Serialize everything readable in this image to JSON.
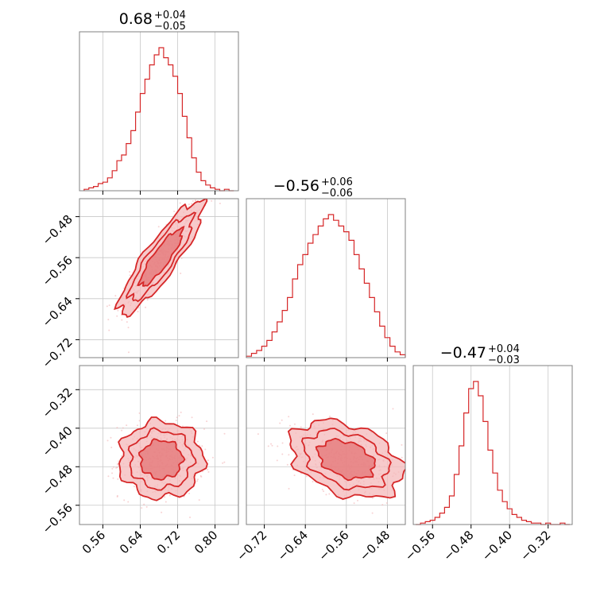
{
  "style": {
    "line_color": "#d62728",
    "fill_light": "#f4b8b9",
    "fill_dark": "#e5797b",
    "scatter_color": "#f2aeb0",
    "grid_color": "#c8c8c8",
    "frame_color": "#808080"
  },
  "chart_data": {
    "type": "corner",
    "grid": true,
    "parameters": [
      {
        "median": "0.68",
        "plus": "+0.04",
        "minus": "−0.05",
        "range": [
          0.51,
          0.85
        ]
      },
      {
        "median": "−0.56",
        "plus": "+0.06",
        "minus": "−0.06",
        "range": [
          -0.755,
          -0.445
        ]
      },
      {
        "median": "−0.47",
        "plus": "+0.04",
        "minus": "−0.03",
        "range": [
          -0.6,
          -0.27
        ]
      }
    ],
    "ticks": [
      {
        "values": [
          0.56,
          0.64,
          0.72,
          0.8
        ],
        "labels": [
          "0.56",
          "0.64",
          "0.72",
          "0.80"
        ]
      },
      {
        "values": [
          -0.72,
          -0.64,
          -0.56,
          -0.48
        ],
        "labels": [
          "−0.72",
          "−0.64",
          "−0.56",
          "−0.48"
        ]
      },
      {
        "values": [
          -0.56,
          -0.48,
          -0.4,
          -0.32
        ],
        "labels": [
          "−0.56",
          "−0.48",
          "−0.40",
          "−0.32"
        ]
      }
    ],
    "histograms": [
      {
        "param": 0,
        "x": [
          0.525,
          0.535,
          0.545,
          0.555,
          0.565,
          0.575,
          0.585,
          0.595,
          0.605,
          0.615,
          0.625,
          0.635,
          0.645,
          0.655,
          0.665,
          0.675,
          0.685,
          0.695,
          0.705,
          0.715,
          0.725,
          0.735,
          0.745,
          0.755,
          0.765,
          0.775,
          0.785,
          0.795,
          0.805,
          0.815,
          0.825,
          0.835
        ],
        "values": [
          0.01,
          0.02,
          0.03,
          0.05,
          0.06,
          0.09,
          0.14,
          0.21,
          0.25,
          0.33,
          0.42,
          0.55,
          0.68,
          0.78,
          0.88,
          0.95,
          1.0,
          0.93,
          0.88,
          0.8,
          0.68,
          0.52,
          0.37,
          0.23,
          0.13,
          0.07,
          0.04,
          0.02,
          0.01,
          0.0,
          0.01,
          0.0
        ]
      },
      {
        "param": 1,
        "x": [
          -0.75,
          -0.74,
          -0.73,
          -0.72,
          -0.71,
          -0.7,
          -0.69,
          -0.68,
          -0.67,
          -0.66,
          -0.65,
          -0.64,
          -0.63,
          -0.62,
          -0.61,
          -0.6,
          -0.59,
          -0.58,
          -0.57,
          -0.56,
          -0.55,
          -0.54,
          -0.53,
          -0.52,
          -0.51,
          -0.5,
          -0.49,
          -0.48,
          -0.47,
          -0.46,
          -0.45
        ],
        "values": [
          0.01,
          0.03,
          0.05,
          0.08,
          0.12,
          0.18,
          0.25,
          0.33,
          0.42,
          0.55,
          0.65,
          0.72,
          0.8,
          0.86,
          0.92,
          0.97,
          1.0,
          0.96,
          0.92,
          0.88,
          0.82,
          0.72,
          0.62,
          0.52,
          0.42,
          0.32,
          0.22,
          0.14,
          0.08,
          0.04,
          0.02
        ]
      },
      {
        "param": 2,
        "x": [
          -0.59,
          -0.58,
          -0.57,
          -0.56,
          -0.55,
          -0.54,
          -0.53,
          -0.52,
          -0.51,
          -0.5,
          -0.49,
          -0.48,
          -0.47,
          -0.46,
          -0.45,
          -0.44,
          -0.43,
          -0.42,
          -0.41,
          -0.4,
          -0.39,
          -0.38,
          -0.37,
          -0.36,
          -0.35,
          -0.34,
          -0.33,
          -0.32,
          -0.31,
          -0.3,
          -0.29,
          -0.28
        ],
        "values": [
          0.0,
          0.01,
          0.02,
          0.03,
          0.05,
          0.08,
          0.12,
          0.2,
          0.35,
          0.55,
          0.78,
          0.95,
          1.0,
          0.9,
          0.72,
          0.52,
          0.36,
          0.24,
          0.16,
          0.11,
          0.07,
          0.05,
          0.03,
          0.02,
          0.01,
          0.01,
          0.0,
          0.01,
          0.0,
          0.0,
          0.01,
          0.0
        ]
      }
    ],
    "pairs": [
      {
        "x_param": 0,
        "y_param": 1,
        "mean": [
          0.685,
          -0.56
        ],
        "sd": [
          0.045,
          0.055
        ],
        "rho": 0.88
      },
      {
        "x_param": 0,
        "y_param": 2,
        "mean": [
          0.685,
          -0.465
        ],
        "sd": [
          0.045,
          0.04
        ],
        "rho": 0.0
      },
      {
        "x_param": 1,
        "y_param": 2,
        "mean": [
          -0.56,
          -0.465
        ],
        "sd": [
          0.055,
          0.04
        ],
        "rho": -0.35
      }
    ],
    "contour_levels_sigma": [
      1,
      1.5,
      2
    ]
  }
}
